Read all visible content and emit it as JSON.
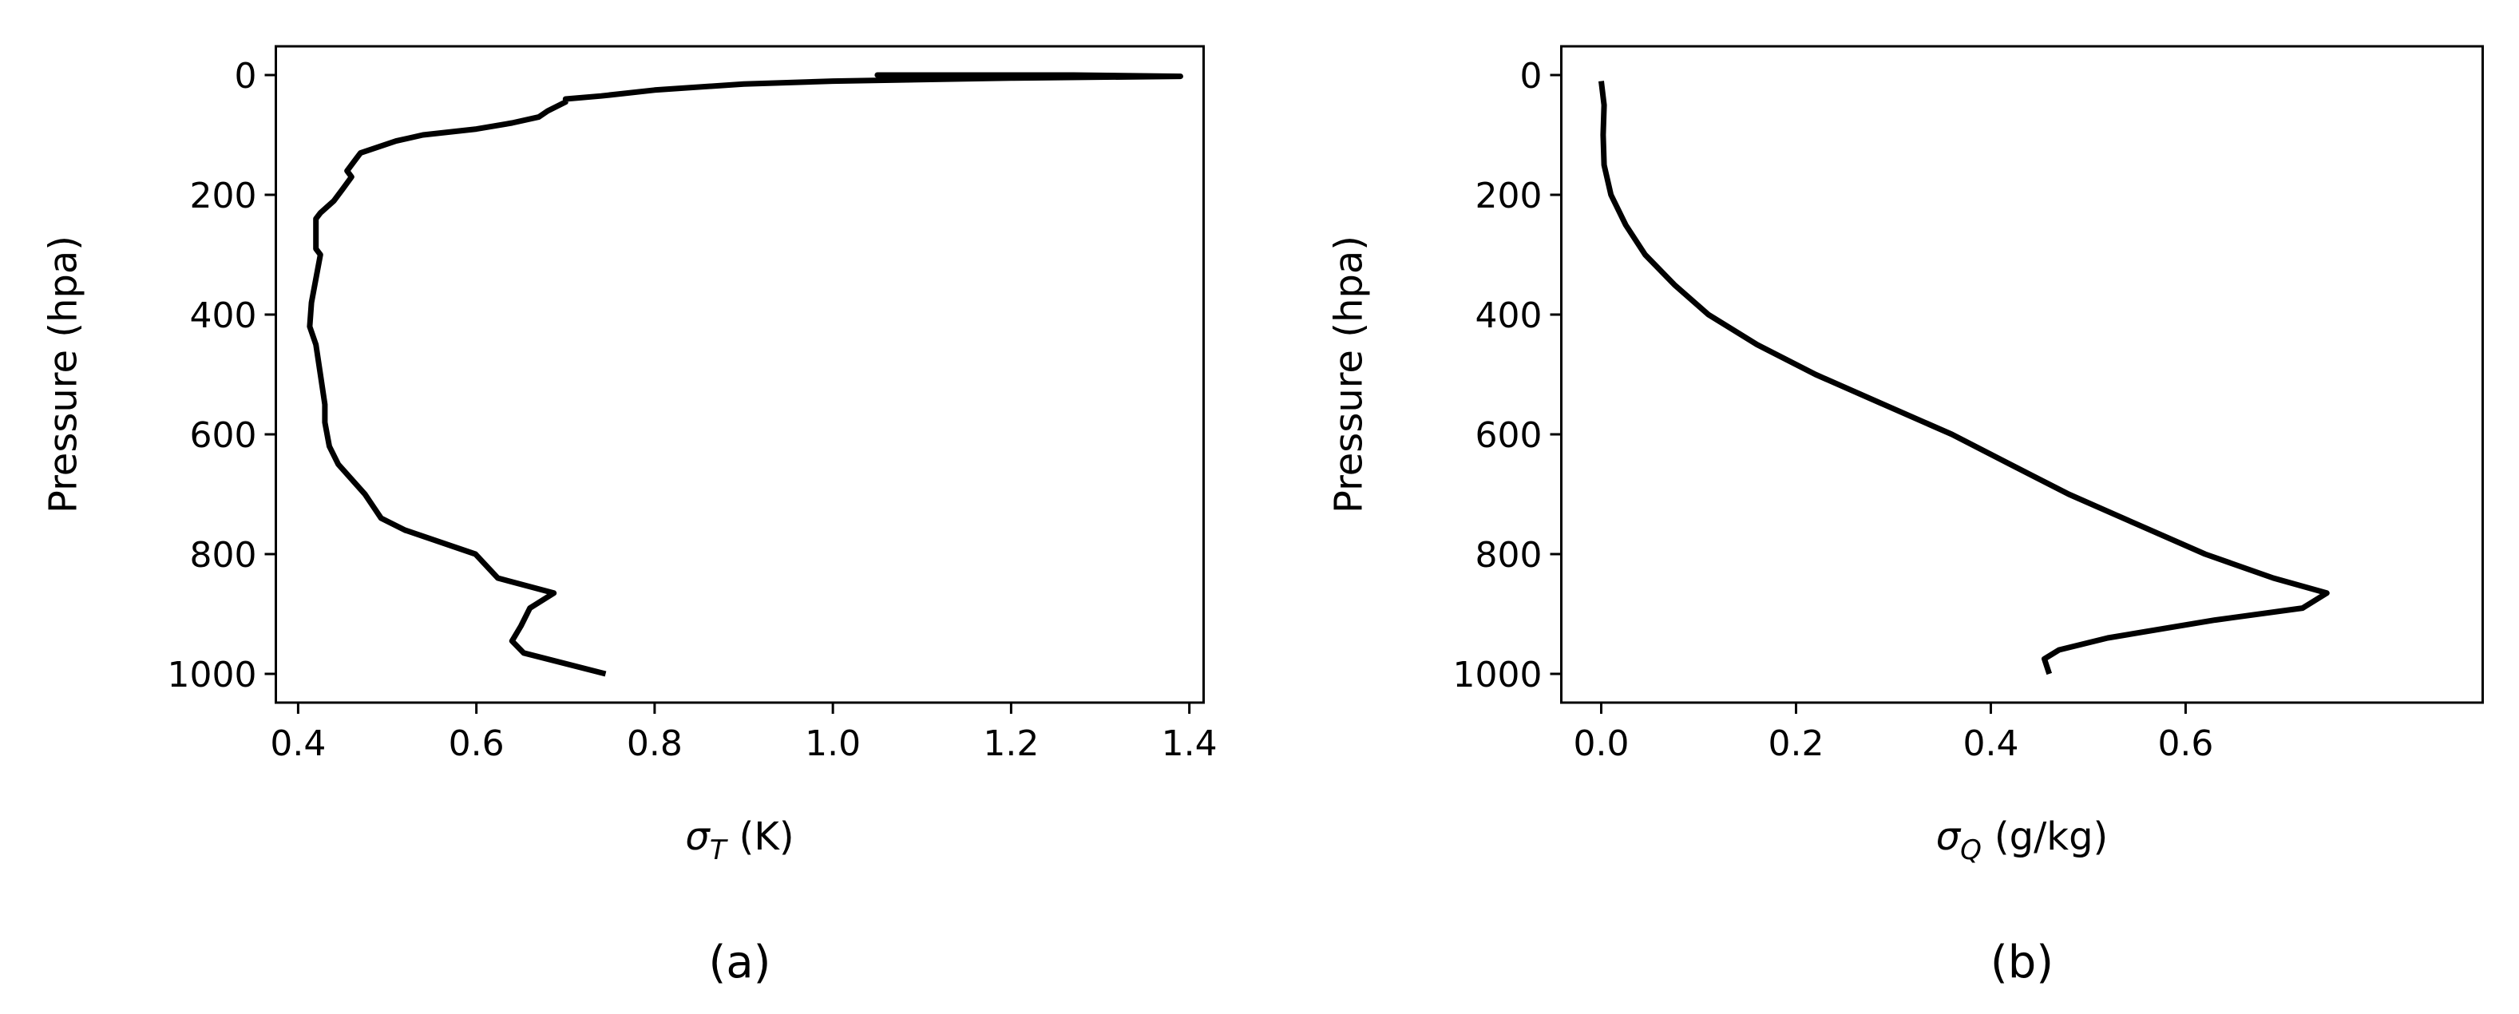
{
  "chart_data": [
    {
      "type": "line",
      "caption": "(a)",
      "ylabel": "Pressure (hpa)",
      "xlabel_symbol": "σ",
      "xlabel_subscript": "T",
      "xlabel_unit": "(K)",
      "color": "#000000",
      "reverse_y": true,
      "xlim": [
        0.375,
        1.416
      ],
      "ylim": [
        1048,
        -48
      ],
      "xticks": [
        0.4,
        0.6,
        0.8,
        {
          "value": 1,
          "label": "1.0"
        },
        1.2,
        1.4
      ],
      "yticks": [
        0,
        200,
        400,
        600,
        800,
        1000
      ],
      "x": [
        0.745,
        0.653,
        0.64,
        0.65,
        0.66,
        0.687,
        0.624,
        0.599,
        0.52,
        0.493,
        0.475,
        0.445,
        0.435,
        0.43,
        0.43,
        0.425,
        0.42,
        0.413,
        0.415,
        0.42,
        0.425,
        0.42,
        0.42,
        0.425,
        0.44,
        0.45,
        0.46,
        0.455,
        0.465,
        0.47,
        0.51,
        0.54,
        0.6,
        0.64,
        0.67,
        0.68,
        0.7,
        0.7,
        0.74,
        0.8,
        0.9,
        1.0,
        1.2,
        1.39,
        1.27,
        1.05,
        1.2
      ],
      "values": [
        1000,
        965,
        945,
        920,
        890,
        865,
        840,
        800,
        760,
        740,
        700,
        650,
        620,
        580,
        550,
        500,
        450,
        420,
        380,
        340,
        300,
        290,
        240,
        230,
        210,
        190,
        170,
        160,
        140,
        130,
        110,
        100,
        90,
        80,
        70,
        60,
        45,
        40,
        35,
        25,
        15,
        10,
        5,
        2,
        0,
        0,
        1
      ]
    },
    {
      "type": "line",
      "caption": "(b)",
      "ylabel": "Pressure (hpa)",
      "xlabel_symbol": "σ",
      "xlabel_subscript": "Q",
      "xlabel_unit": "(g/kg)",
      "color": "#000000",
      "reverse_y": true,
      "xlim": [
        -0.041,
        0.905
      ],
      "ylim": [
        1048,
        -48
      ],
      "xticks": [
        {
          "value": 0,
          "label": "0.0"
        },
        0.2,
        0.4,
        0.6
      ],
      "yticks": [
        0,
        200,
        400,
        600,
        800,
        1000
      ],
      "x": [
        0.0,
        0.003,
        0.002,
        0.003,
        0.01,
        0.025,
        0.045,
        0.075,
        0.11,
        0.16,
        0.22,
        0.29,
        0.36,
        0.42,
        0.48,
        0.55,
        0.62,
        0.69,
        0.745,
        0.72,
        0.63,
        0.52,
        0.47,
        0.455,
        0.46
      ],
      "values": [
        10,
        50,
        100,
        150,
        200,
        250,
        300,
        350,
        400,
        450,
        500,
        550,
        600,
        650,
        700,
        750,
        800,
        840,
        865,
        890,
        910,
        940,
        960,
        975,
        1000
      ]
    }
  ]
}
